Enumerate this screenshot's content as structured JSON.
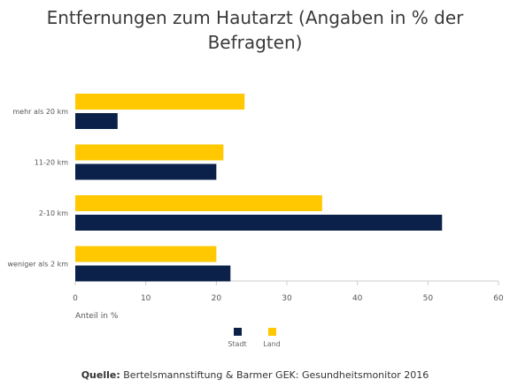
{
  "title": "Entfernungen zum Hautarzt (Angaben in % der Befragten)",
  "source": {
    "label": "Quelle:",
    "text": "Bertelsmannstiftung & Barmer GEK: Gesundheitsmonitor 2016"
  },
  "colors": {
    "land": "#ffc800",
    "stadt": "#0b2149",
    "axis": "#cccccc",
    "text": "#333333"
  },
  "chart_data": {
    "type": "bar",
    "orientation": "horizontal",
    "categories": [
      "mehr als 20 km",
      "11-20 km",
      "2-10 km",
      "weniger als 2 km"
    ],
    "series": [
      {
        "name": "Land",
        "values": [
          24,
          21,
          35,
          20
        ]
      },
      {
        "name": "Stadt",
        "values": [
          6,
          20,
          52,
          22
        ]
      }
    ],
    "xlabel": "Anteil in %",
    "ylabel": "",
    "xlim": [
      0,
      60
    ],
    "xticks": [
      0,
      10,
      20,
      30,
      40,
      50,
      60
    ],
    "grid": false,
    "legend_position": "bottom-center",
    "legend_order": [
      "Stadt",
      "Land"
    ]
  }
}
